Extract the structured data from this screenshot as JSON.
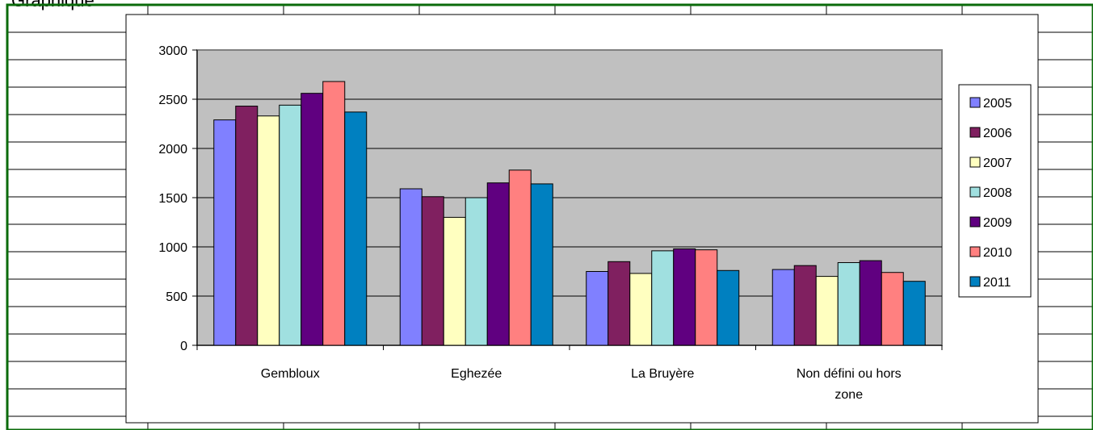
{
  "sheet": {
    "title": "Graphique"
  },
  "colors": {
    "plot_background": "#c0c0c0",
    "sheet_border": "#0b6b0b",
    "grid": "#000000"
  },
  "chart_data": {
    "type": "bar",
    "title": "",
    "xlabel": "",
    "ylabel": "",
    "categories": [
      "Gembloux",
      "Eghezée",
      "La Bruyère",
      "Non défini ou hors zone"
    ],
    "ylim": [
      0,
      3000
    ],
    "yticks": [
      0,
      500,
      1000,
      1500,
      2000,
      2500,
      3000
    ],
    "grid": true,
    "legend_position": "right",
    "series": [
      {
        "name": "2005",
        "color": "#8080ff",
        "values": [
          2290,
          1590,
          750,
          770
        ]
      },
      {
        "name": "2006",
        "color": "#802060",
        "values": [
          2430,
          1510,
          850,
          810
        ]
      },
      {
        "name": "2007",
        "color": "#ffffc0",
        "values": [
          2330,
          1300,
          730,
          700
        ]
      },
      {
        "name": "2008",
        "color": "#a0e0e0",
        "values": [
          2440,
          1500,
          960,
          840
        ]
      },
      {
        "name": "2009",
        "color": "#600080",
        "values": [
          2560,
          1650,
          980,
          860
        ]
      },
      {
        "name": "2010",
        "color": "#ff8080",
        "values": [
          2680,
          1780,
          970,
          740
        ]
      },
      {
        "name": "2011",
        "color": "#0080c0",
        "values": [
          2370,
          1640,
          760,
          650
        ]
      }
    ]
  }
}
